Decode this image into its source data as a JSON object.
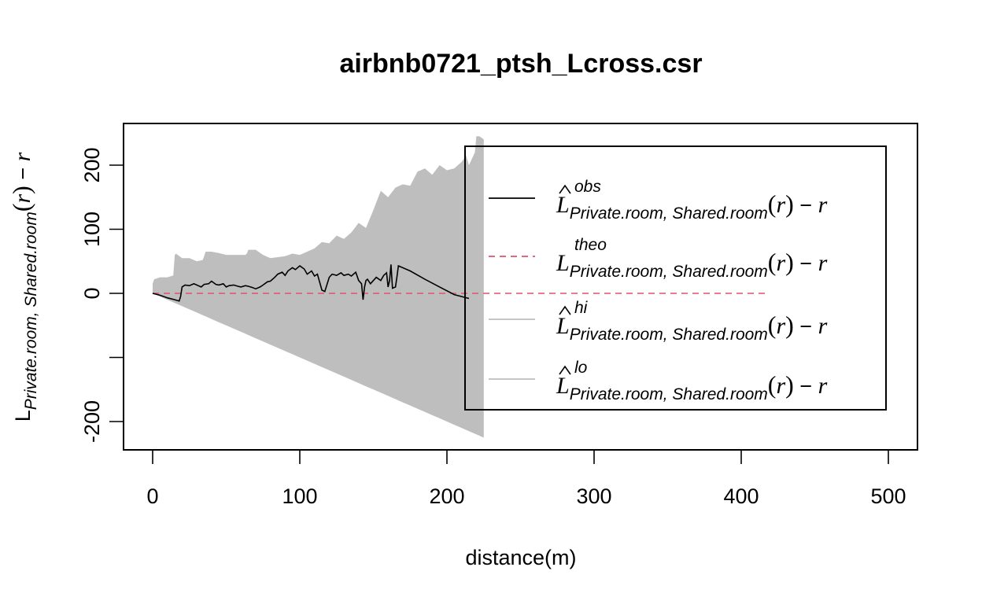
{
  "chart_data": {
    "type": "line",
    "title": "airbnb0721_ptsh_Lcross.csr",
    "xlabel": "distance(m)",
    "ylabel": {
      "base": "L",
      "subscript": "Private.room, Shared.room",
      "suffix_open": "(",
      "suffix_var": "r",
      "suffix_close": ")",
      "suffix_minus": " − ",
      "suffix_r": "r"
    },
    "xlim": [
      0,
      500
    ],
    "ylim": [
      -240,
      265
    ],
    "x_ticks": [
      0,
      100,
      200,
      300,
      400,
      500
    ],
    "x_tick_labels": [
      "0",
      "100",
      "200",
      "300",
      "400",
      "500"
    ],
    "y_ticks": [
      -200,
      -100,
      0,
      100,
      200
    ],
    "y_tick_labels": [
      "-200",
      "",
      "0",
      "100",
      "200"
    ],
    "grid": false,
    "legend_position": "right",
    "colors": {
      "obs": "#000000",
      "theo": "#DF536B",
      "envelope": "#BEBEBE"
    },
    "series": [
      {
        "name": "obs",
        "label_sup": "obs",
        "style": "solid",
        "x": [
          0,
          5,
          10,
          15,
          18,
          19,
          20,
          22,
          25,
          28,
          30,
          33,
          35,
          38,
          40,
          43,
          45,
          48,
          50,
          52,
          55,
          58,
          60,
          63,
          65,
          68,
          70,
          73,
          75,
          78,
          80,
          83,
          85,
          88,
          90,
          92,
          95,
          97,
          100,
          103,
          105,
          108,
          110,
          112,
          115,
          117,
          120,
          122,
          125,
          128,
          130,
          133,
          135,
          138,
          140,
          142,
          143,
          144,
          145,
          146,
          148,
          150,
          152,
          155,
          157,
          159,
          160,
          161,
          162,
          163,
          165,
          166,
          167,
          175,
          185,
          195,
          205,
          215
        ],
        "y": [
          0,
          -3,
          -7,
          -10,
          -12,
          -5,
          10,
          13,
          12,
          15,
          13,
          10,
          14,
          15,
          19,
          14,
          13,
          15,
          10,
          12,
          13,
          11,
          10,
          12,
          11,
          9,
          7,
          10,
          13,
          18,
          19,
          25,
          30,
          33,
          28,
          35,
          40,
          37,
          43,
          38,
          30,
          35,
          27,
          30,
          5,
          3,
          25,
          30,
          28,
          32,
          28,
          30,
          27,
          33,
          20,
          15,
          -10,
          10,
          20,
          22,
          15,
          20,
          25,
          20,
          28,
          32,
          10,
          20,
          45,
          8,
          10,
          25,
          43,
          35,
          22,
          10,
          -2,
          -8
        ]
      },
      {
        "name": "theo",
        "label_sup": "theo",
        "style": "dashed",
        "x": [
          0,
          417
        ],
        "y": [
          0,
          0
        ]
      },
      {
        "name": "hi",
        "label_sup": "hi",
        "style": "envelope",
        "x": [
          0,
          1,
          5,
          10,
          14,
          15,
          16,
          17,
          20,
          25,
          30,
          34,
          35,
          36,
          40,
          45,
          50,
          60,
          63,
          64,
          65,
          70,
          75,
          80,
          90,
          95,
          100,
          110,
          115,
          120,
          125,
          130,
          135,
          140,
          145,
          150,
          155,
          160,
          165,
          170,
          175,
          180,
          185,
          190,
          195,
          200,
          205,
          210,
          213,
          215,
          217,
          219,
          220,
          222,
          224,
          225
        ],
        "y": [
          15,
          22,
          25,
          25,
          28,
          60,
          62,
          60,
          55,
          55,
          50,
          52,
          58,
          65,
          65,
          63,
          60,
          60,
          60,
          62,
          68,
          68,
          60,
          55,
          58,
          62,
          60,
          70,
          80,
          78,
          90,
          85,
          95,
          110,
          102,
          130,
          160,
          150,
          165,
          170,
          168,
          190,
          195,
          185,
          200,
          192,
          195,
          205,
          215,
          200,
          210,
          220,
          245,
          245,
          242,
          240
        ]
      },
      {
        "name": "lo",
        "label_sup": "lo",
        "style": "envelope",
        "x": [
          0,
          225
        ],
        "y": [
          0,
          -225
        ]
      }
    ],
    "legend": [
      {
        "key": "obs",
        "sup": "obs",
        "hat": true
      },
      {
        "key": "theo",
        "sup": "theo",
        "hat": false
      },
      {
        "key": "hi",
        "sup": "hi",
        "hat": true
      },
      {
        "key": "lo",
        "sup": "lo",
        "hat": true
      }
    ],
    "legend_text": {
      "base": "L",
      "subscript": "Private.room, Shared.room",
      "paren_open": "(",
      "var": "r",
      "paren_close": ")",
      "minus": " − ",
      "r": "r"
    }
  }
}
